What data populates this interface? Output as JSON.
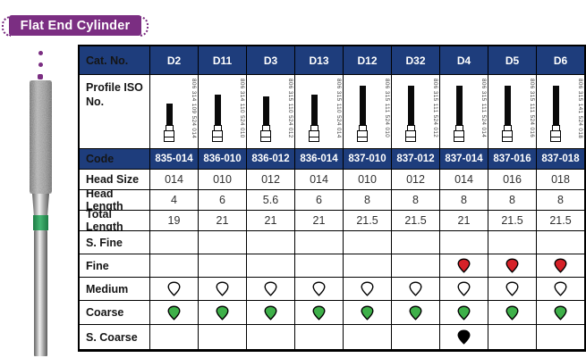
{
  "badge": {
    "title": "Flat End Cylinder"
  },
  "colors": {
    "accent_purple": "#7b2e82",
    "header_navy": "#1e3d7c",
    "band_green": "#2f9e57"
  },
  "grit_colors": {
    "red": "#d62128",
    "green": "#3eb049",
    "white": "#ffffff",
    "black": "#000000"
  },
  "table": {
    "cat_no_label": "Cat. No.",
    "columns": [
      "D2",
      "D11",
      "D3",
      "D13",
      "D12",
      "D32",
      "D4",
      "D5",
      "D6"
    ],
    "profile_row": {
      "label": "Profile ISO No.",
      "iso_numbers": [
        "806 314 109 524 014",
        "806 314 110 524 010",
        "806 315 110 524 012",
        "806 315 110 524 014",
        "806 315 111 524 010",
        "806 315 111 524 012",
        "806 315 111 524 014",
        "806 315 111 524 016",
        "806 315 141 524 018"
      ]
    },
    "rows": [
      {
        "label": "Code",
        "navy": true,
        "values": [
          "835-014",
          "836-010",
          "836-012",
          "836-014",
          "837-010",
          "837-012",
          "837-014",
          "837-016",
          "837-018"
        ]
      },
      {
        "label": "Head Size",
        "values": [
          "014",
          "010",
          "012",
          "014",
          "010",
          "012",
          "014",
          "016",
          "018"
        ]
      },
      {
        "label": "Head Length",
        "values": [
          "4",
          "6",
          "5.6",
          "6",
          "8",
          "8",
          "8",
          "8",
          "8"
        ]
      },
      {
        "label": "Total Length",
        "values": [
          "19",
          "21",
          "21",
          "21",
          "21.5",
          "21.5",
          "21",
          "21.5",
          "21.5"
        ]
      },
      {
        "label": "S. Fine",
        "type": "grit",
        "values": [
          null,
          null,
          null,
          null,
          null,
          null,
          null,
          null,
          null
        ]
      },
      {
        "label": "Fine",
        "type": "grit",
        "values": [
          null,
          null,
          null,
          null,
          null,
          null,
          "red",
          "red",
          "red"
        ]
      },
      {
        "label": "Medium",
        "type": "grit",
        "values": [
          "white",
          "white",
          "white",
          "white",
          "white",
          "white",
          "white",
          "white",
          "white"
        ]
      },
      {
        "label": "Coarse",
        "type": "grit",
        "values": [
          "green",
          "green",
          "green",
          "green",
          "green",
          "green",
          "green",
          "green",
          "green"
        ]
      },
      {
        "label": "S. Coarse",
        "type": "grit",
        "values": [
          null,
          null,
          null,
          null,
          null,
          null,
          "black",
          null,
          null
        ]
      }
    ]
  }
}
